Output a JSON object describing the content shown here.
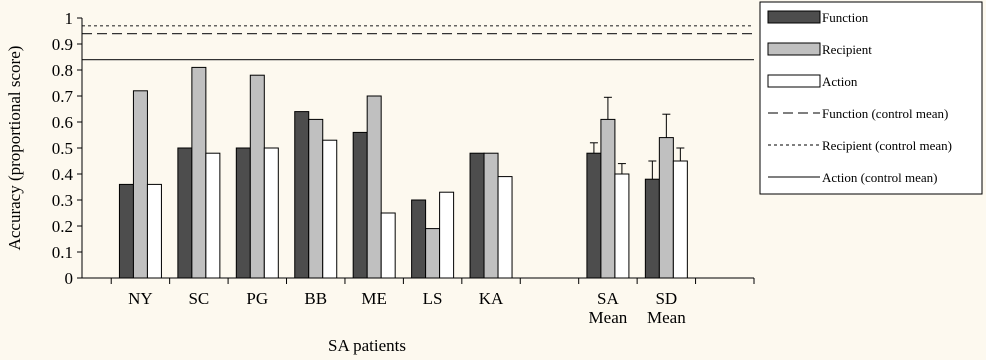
{
  "chart_data": {
    "type": "bar",
    "title": "",
    "xlabel": "SA patients",
    "ylabel": "Accuracy (proportional score)",
    "ylim": [
      0,
      1
    ],
    "yticks": [
      0,
      0.1,
      0.2,
      0.3,
      0.4,
      0.5,
      0.6,
      0.7,
      0.8,
      0.9,
      1
    ],
    "ytick_labels": [
      "0",
      "0.1",
      "0.2",
      "0.3",
      "0.4",
      "0.5",
      "0.6",
      "0.7",
      "0.8",
      "0.9",
      "1"
    ],
    "categories": [
      {
        "label": [
          "NY"
        ]
      },
      {
        "label": [
          "SC"
        ]
      },
      {
        "label": [
          "PG"
        ]
      },
      {
        "label": [
          "BB"
        ]
      },
      {
        "label": [
          "ME"
        ]
      },
      {
        "label": [
          "LS"
        ]
      },
      {
        "label": [
          "KA"
        ]
      },
      {
        "label": []
      },
      {
        "label": [
          "SA",
          "Mean"
        ]
      },
      {
        "label": [
          "SD",
          "Mean"
        ]
      },
      {
        "label": []
      }
    ],
    "series": [
      {
        "name": "Function",
        "color": "#4d4d4d",
        "values": [
          0.36,
          0.5,
          0.5,
          0.64,
          0.56,
          0.3,
          0.48,
          null,
          0.48,
          0.38,
          null
        ],
        "error": [
          null,
          null,
          null,
          null,
          null,
          null,
          null,
          null,
          0.04,
          0.07,
          null
        ]
      },
      {
        "name": "Recipient",
        "color": "#c0c0c0",
        "values": [
          0.72,
          0.81,
          0.78,
          0.61,
          0.7,
          0.19,
          0.48,
          null,
          0.61,
          0.54,
          null
        ],
        "error": [
          null,
          null,
          null,
          null,
          null,
          null,
          null,
          null,
          0.085,
          0.09,
          null
        ]
      },
      {
        "name": "Action",
        "color": "#ffffff",
        "values": [
          0.36,
          0.48,
          0.5,
          0.53,
          0.25,
          0.33,
          0.39,
          null,
          0.4,
          0.45,
          null
        ],
        "error": [
          null,
          null,
          null,
          null,
          null,
          null,
          null,
          null,
          0.04,
          0.05,
          null
        ]
      }
    ],
    "reference_lines": [
      {
        "name": "Function (control mean)",
        "value": 0.94,
        "style": "dashed"
      },
      {
        "name": "Recipient (control mean)",
        "value": 0.97,
        "style": "dotted"
      },
      {
        "name": "Action (control mean)",
        "value": 0.84,
        "style": "solid"
      }
    ],
    "legend_position": "right",
    "grid": false
  }
}
